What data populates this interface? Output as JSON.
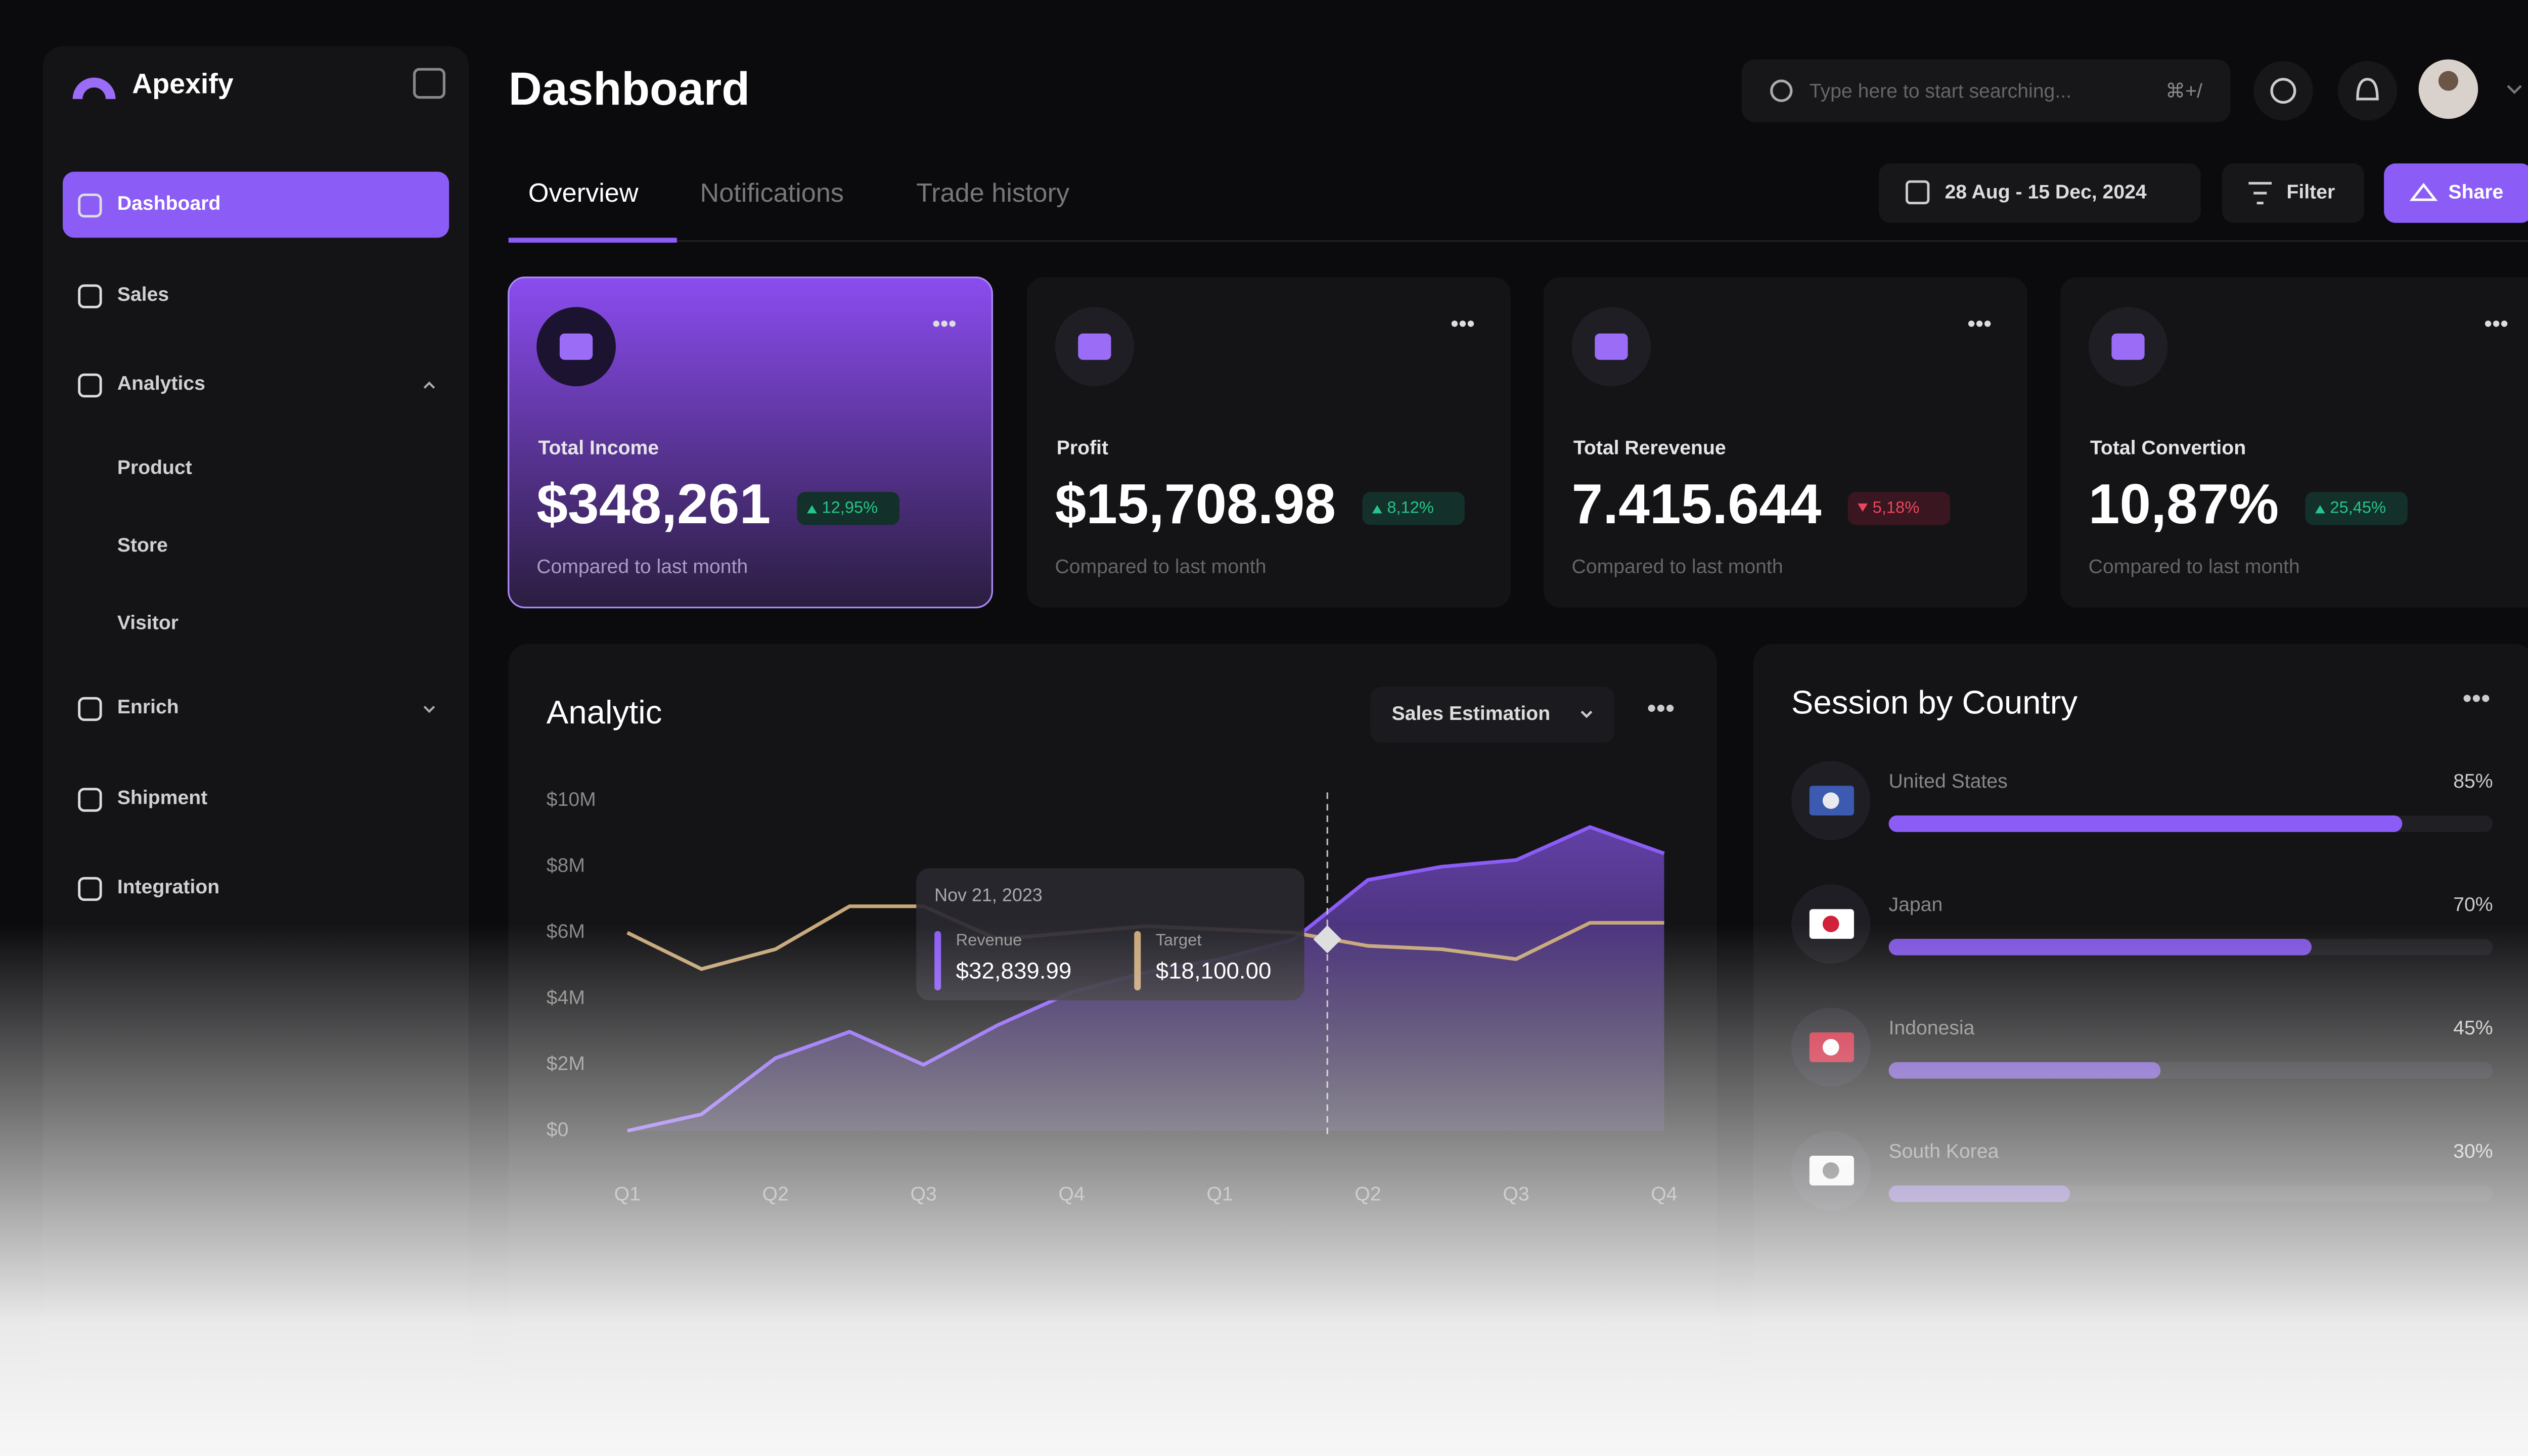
{
  "sidebar": {
    "brand": "Apexify",
    "menu": [
      "Dashboard",
      "Sales",
      "Analytics",
      "Product",
      "Store",
      "Visitor",
      "Enrich",
      "Shipment",
      "Integration"
    ]
  },
  "header": {
    "title": "Dashboard",
    "search_placeholder": "Type here to start searching...",
    "shortcut": "⌘+/",
    "tabs": [
      "Overview",
      "Notifications",
      "Trade history"
    ],
    "date_range": "28 Aug - 15 Dec, 2024",
    "filter": "Filter",
    "share": "Share"
  },
  "cards": [
    {
      "label": "Total Income",
      "value": "$348,261",
      "change": "12,95%",
      "note": "Compared to last month"
    },
    {
      "label": "Profit",
      "value": "$15,708.98",
      "change": "8,12%",
      "note": "Compared to last month"
    },
    {
      "label": "Total Rerevenue",
      "value": "7.415.644",
      "change": "5,18%",
      "note": "Compared to last month"
    },
    {
      "label": "Total Convertion",
      "value": "10,87%",
      "change": "25,45%",
      "note": "Compared to last month"
    }
  ],
  "analytic": {
    "title": "Analytic",
    "dropdown": "Sales Estimation",
    "tooltip": {
      "date": "Nov 21, 2023",
      "items": [
        {
          "name": "Revenue",
          "value": "$32,839.99"
        },
        {
          "name": "Target",
          "value": "$18,100.00"
        }
      ]
    }
  },
  "session": {
    "title": "Session by Country"
  },
  "chart_data": [
    {
      "type": "line",
      "x": [
        0,
        0.5,
        1,
        1.5,
        2,
        2.5,
        3,
        3.5,
        4,
        4.5,
        5,
        5.5,
        6,
        6.5,
        7
      ],
      "series": [
        {
          "name": "Revenue",
          "color": "#8b5cf6",
          "values": [
            0,
            0.5,
            2.2,
            3,
            2,
            3.2,
            4.2,
            4.8,
            5.2,
            5.8,
            7.6,
            8,
            8.2,
            9.2,
            8.4
          ]
        },
        {
          "name": "Target",
          "color": "#c7a77a",
          "values": [
            6,
            4.9,
            5.5,
            6.8,
            6.8,
            5.8,
            6,
            6.2,
            6.1,
            6,
            5.6,
            5.5,
            5.2,
            6.3,
            6.3
          ]
        }
      ],
      "xlim": [
        0,
        7
      ],
      "xticks": [
        {
          "value": 0,
          "label": "Q1"
        },
        {
          "value": 1,
          "label": "Q2"
        },
        {
          "value": 2,
          "label": "Q3"
        },
        {
          "value": 3,
          "label": "Q4"
        },
        {
          "value": 4,
          "label": "Q1"
        },
        {
          "value": 5,
          "label": "Q2"
        },
        {
          "value": 6,
          "label": "Q3"
        },
        {
          "value": 7,
          "label": "Q4"
        }
      ],
      "ylim": [
        0,
        10
      ],
      "yticks": [
        {
          "value": 0,
          "label": "$0"
        },
        {
          "value": 2,
          "label": "$2M"
        },
        {
          "value": 4,
          "label": "$4M"
        },
        {
          "value": 6,
          "label": "$6M"
        },
        {
          "value": 8,
          "label": "$8M"
        },
        {
          "value": 10,
          "label": "$10M"
        }
      ]
    },
    {
      "type": "hbar",
      "categories": [
        "United States",
        "Japan",
        "Indonesia",
        "South Korea"
      ],
      "values": [
        85,
        70,
        45,
        30
      ],
      "value_labels": [
        "85%",
        "70%",
        "45%",
        "30%"
      ],
      "xlim": [
        0,
        100
      ],
      "color": "#8b5cf6"
    }
  ]
}
